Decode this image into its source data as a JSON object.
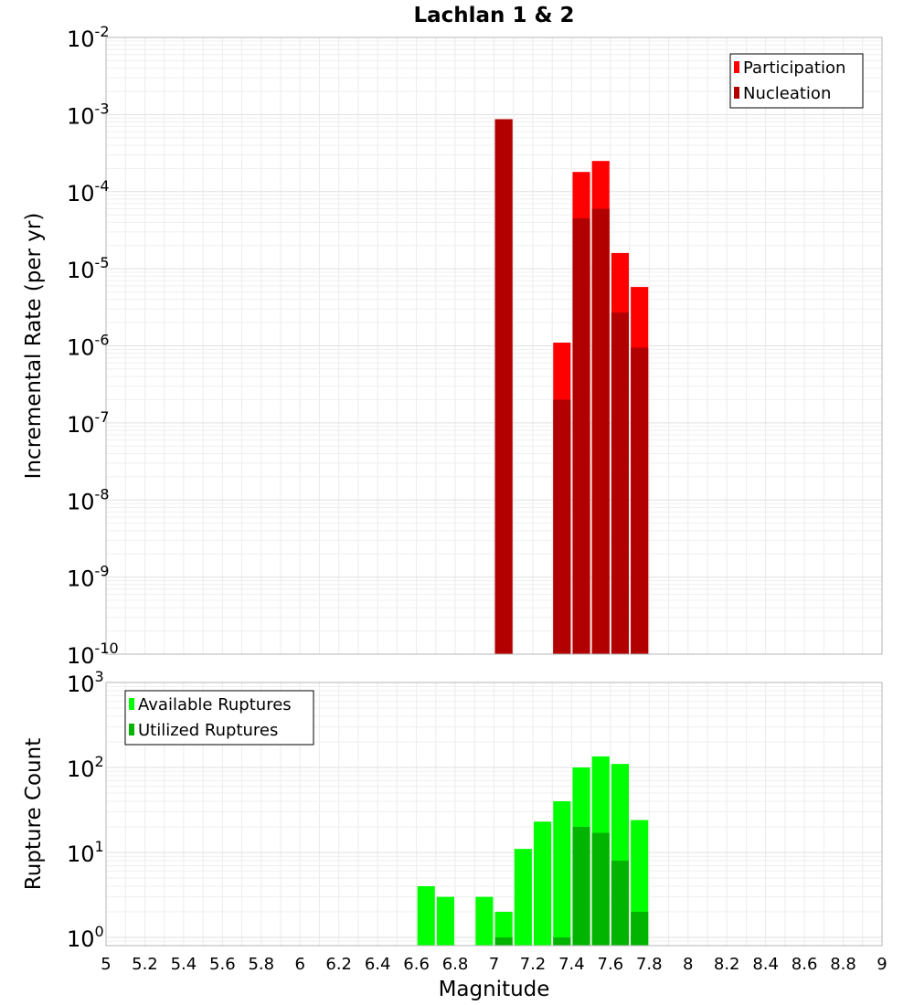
{
  "chart_data": [
    {
      "type": "bar",
      "title": "Lachlan 1 & 2",
      "ylabel": "Incremental Rate (per yr)",
      "xlabel": "",
      "xlim": [
        5,
        9
      ],
      "ylim": [
        1e-10,
        0.01
      ],
      "y_scale": "log",
      "grid": true,
      "bar_width": 0.09,
      "legend_position": "top-right",
      "series": [
        {
          "name": "Participation",
          "color": "#ff0000",
          "x": [
            7.05,
            7.35,
            7.45,
            7.55,
            7.65,
            7.75
          ],
          "values": [
            0.00087,
            1.1e-06,
            0.00018,
            0.00025,
            1.6e-05,
            5.8e-06
          ]
        },
        {
          "name": "Nucleation",
          "color": "#b20000",
          "x": [
            7.05,
            7.35,
            7.45,
            7.55,
            7.65,
            7.75
          ],
          "values": [
            0.00087,
            2e-07,
            4.5e-05,
            6e-05,
            2.7e-06,
            9.5e-07
          ]
        }
      ]
    },
    {
      "type": "bar",
      "title": "",
      "ylabel": "Rupture Count",
      "xlabel": "Magnitude",
      "xlim": [
        5,
        9
      ],
      "ylim": [
        0.8,
        1000
      ],
      "y_scale": "log",
      "grid": true,
      "bar_width": 0.09,
      "legend_position": "top-left",
      "x_ticks": [
        "5",
        "5.2",
        "5.4",
        "5.6",
        "5.8",
        "6",
        "6.2",
        "6.4",
        "6.6",
        "6.8",
        "7",
        "7.2",
        "7.4",
        "7.6",
        "7.8",
        "8",
        "8.2",
        "8.4",
        "8.6",
        "8.8",
        "9"
      ],
      "series": [
        {
          "name": "Available Ruptures",
          "color": "#00ff00",
          "x": [
            6.65,
            6.75,
            6.95,
            7.05,
            7.15,
            7.25,
            7.35,
            7.45,
            7.55,
            7.65,
            7.75
          ],
          "values": [
            4,
            3,
            3,
            2,
            11,
            23,
            40,
            100,
            135,
            110,
            24
          ]
        },
        {
          "name": "Utilized Ruptures",
          "color": "#00b400",
          "x": [
            7.05,
            7.35,
            7.45,
            7.55,
            7.65,
            7.75
          ],
          "values": [
            1,
            1,
            20,
            17,
            8,
            2
          ]
        }
      ]
    }
  ]
}
